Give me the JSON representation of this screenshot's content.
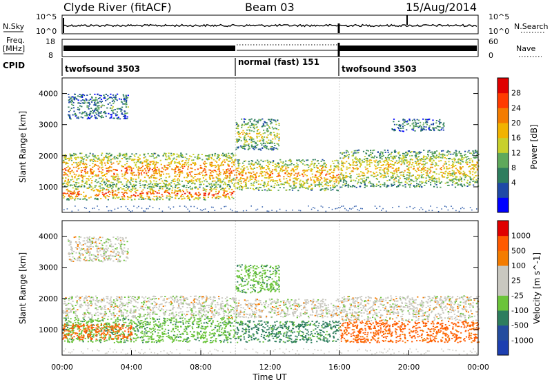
{
  "header": {
    "station": "Clyde River (fitACF)",
    "beam": "Beam 03",
    "date": "15/Aug/2014"
  },
  "top_panels": {
    "nsky_label": "N.Sky",
    "nsky_ticks": [
      "10^5",
      "10^0"
    ],
    "nsearch_label": "N.Search",
    "nsearch_ticks": [
      "10^5",
      "10^0"
    ],
    "freq_label": "Freq.",
    "freq_unit": "[MHz]",
    "freq_ticks": [
      "18",
      "8"
    ],
    "nave_label": "Nave",
    "nave_ticks": [
      "60",
      "0"
    ],
    "cpid_label": "CPID",
    "cpid_segments": [
      {
        "label": "twofsound 3503",
        "start_hour": 0,
        "end_hour": 10
      },
      {
        "label": "normal (fast) 151",
        "start_hour": 10,
        "end_hour": 16
      },
      {
        "label": "twofsound 3503",
        "start_hour": 16,
        "end_hour": 24
      }
    ]
  },
  "chart_data": [
    {
      "type": "heatmap",
      "title": "",
      "ylabel": "Slant Range [km]",
      "xlabel": "",
      "xlim": [
        0,
        24
      ],
      "ylim": [
        180,
        4500
      ],
      "yticks": [
        "1000",
        "2000",
        "3000",
        "4000"
      ],
      "colorbar": {
        "label": "Power [dB]",
        "ticks": [
          "28",
          "24",
          "20",
          "16",
          "12",
          "8",
          "4"
        ],
        "colors": [
          "#0000ff",
          "#1f49a6",
          "#2e7d5e",
          "#5fa95b",
          "#c8d02c",
          "#f1b300",
          "#f47c00",
          "#ff3b00",
          "#e00000"
        ]
      },
      "bands": [
        {
          "t0": 0.0,
          "t1": 10.0,
          "r0": 1000,
          "r1": 2100,
          "intensity": 0.8
        },
        {
          "t0": 0.0,
          "t1": 10.0,
          "r0": 600,
          "r1": 1000,
          "intensity": 0.9
        },
        {
          "t0": 0.3,
          "t1": 3.8,
          "r0": 3200,
          "r1": 4000,
          "intensity": 0.3
        },
        {
          "t0": 10.0,
          "t1": 16.0,
          "r0": 900,
          "r1": 1900,
          "intensity": 0.75
        },
        {
          "t0": 10.0,
          "t1": 12.5,
          "r0": 2200,
          "r1": 3200,
          "intensity": 0.55
        },
        {
          "t0": 16.0,
          "t1": 24.0,
          "r0": 1000,
          "r1": 2200,
          "intensity": 0.65
        },
        {
          "t0": 19.0,
          "t1": 22.0,
          "r0": 2800,
          "r1": 3200,
          "intensity": 0.3
        }
      ]
    },
    {
      "type": "heatmap",
      "title": "",
      "ylabel": "Slant Range [km]",
      "xlabel": "Time UT",
      "xlim": [
        0,
        24
      ],
      "ylim": [
        180,
        4500
      ],
      "xticks": [
        "00:00",
        "04:00",
        "08:00",
        "12:00",
        "16:00",
        "20:00",
        "00:00"
      ],
      "yticks": [
        "1000",
        "2000",
        "3000",
        "4000"
      ],
      "colorbar": {
        "label": "Velocity [m s^-1]",
        "ticks": [
          "1000",
          "500",
          "100",
          "25",
          "-25",
          "-100",
          "-500",
          "-1000"
        ],
        "colors": [
          "#e00000",
          "#ff5a00",
          "#f47c00",
          "#c9c8c0",
          "#c9c8c0",
          "#6bc43a",
          "#2e7d5e",
          "#244c9e",
          "#1d3fb0"
        ]
      },
      "bands": [
        {
          "t0": 0.0,
          "t1": 10.0,
          "r0": 1400,
          "r1": 2100,
          "velocity": -10
        },
        {
          "t0": 0.0,
          "t1": 10.0,
          "r0": 600,
          "r1": 1400,
          "velocity": -200
        },
        {
          "t0": 0.0,
          "t1": 4.0,
          "r0": 700,
          "r1": 1200,
          "velocity": 300
        },
        {
          "t0": 0.3,
          "t1": 3.8,
          "r0": 3200,
          "r1": 4000,
          "velocity": 0
        },
        {
          "t0": 10.0,
          "t1": 16.0,
          "r0": 1400,
          "r1": 2000,
          "velocity": 0
        },
        {
          "t0": 10.0,
          "t1": 16.0,
          "r0": 600,
          "r1": 1300,
          "velocity": -300
        },
        {
          "t0": 10.0,
          "t1": 12.5,
          "r0": 2200,
          "r1": 3100,
          "velocity": -200
        },
        {
          "t0": 16.0,
          "t1": 24.0,
          "r0": 1300,
          "r1": 2100,
          "velocity": 0
        },
        {
          "t0": 16.0,
          "t1": 24.0,
          "r0": 600,
          "r1": 1300,
          "velocity": 300
        }
      ]
    }
  ]
}
